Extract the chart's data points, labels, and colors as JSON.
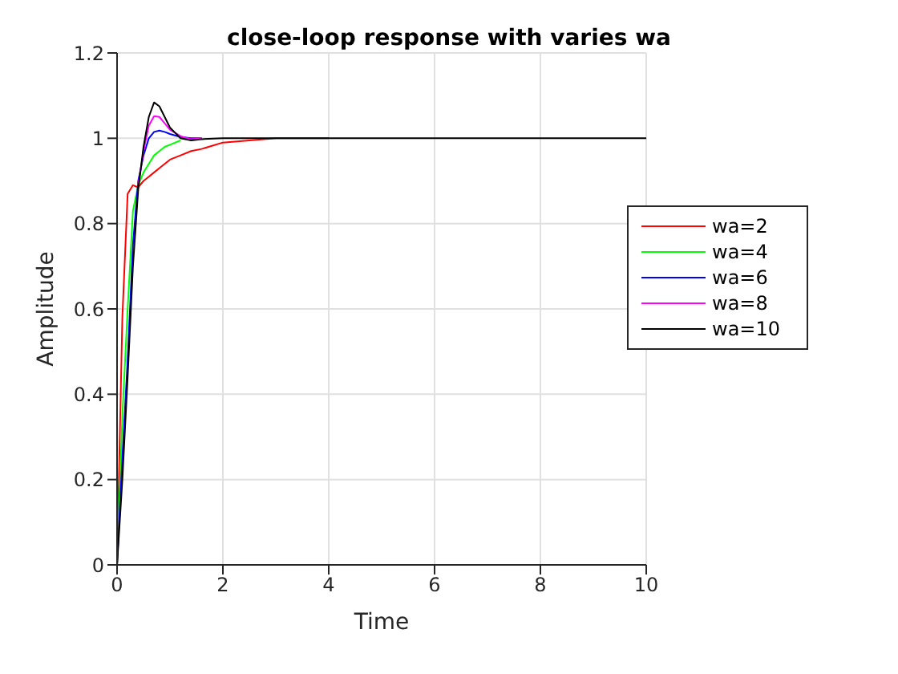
{
  "chart_data": {
    "type": "line",
    "title": "close-loop response with varies wa",
    "xlabel": "Time",
    "ylabel": "Amplitude",
    "x": [
      0,
      0.1,
      0.2,
      0.3,
      0.4,
      0.5,
      0.6,
      0.7,
      0.8,
      0.9,
      1.0,
      1.2,
      1.4,
      1.6,
      2,
      2.5,
      3,
      4,
      6,
      10
    ],
    "series": [
      {
        "name": "wa=2",
        "color": "#ff0000",
        "values": [
          0,
          0.58,
          0.87,
          0.89,
          0.885,
          0.9,
          0.91,
          0.92,
          0.93,
          0.94,
          0.95,
          0.96,
          0.97,
          0.975,
          0.99,
          0.995,
          1,
          1,
          null,
          null
        ]
      },
      {
        "name": "wa=4",
        "color": "#00ff00",
        "values": [
          0,
          0.35,
          0.6,
          0.83,
          0.89,
          0.92,
          0.94,
          0.96,
          0.97,
          0.98,
          0.985,
          0.995,
          null,
          null,
          null,
          null,
          null,
          null,
          null,
          null
        ]
      },
      {
        "name": "wa=6",
        "color": "#0000ff",
        "values": [
          0,
          0.25,
          0.48,
          0.75,
          0.9,
          0.96,
          1.0,
          1.015,
          1.018,
          1.015,
          1.01,
          1.003,
          1,
          1,
          null,
          null,
          null,
          null,
          null,
          null
        ]
      },
      {
        "name": "wa=8",
        "color": "#ff00ff",
        "values": [
          null,
          null,
          null,
          null,
          0.89,
          0.97,
          1.03,
          1.052,
          1.05,
          1.035,
          1.02,
          1.005,
          0.998,
          1,
          null,
          null,
          null,
          null,
          null,
          null
        ]
      },
      {
        "name": "wa=10",
        "color": "#000000",
        "values": [
          0,
          0.2,
          0.44,
          0.7,
          0.88,
          0.98,
          1.05,
          1.084,
          1.075,
          1.05,
          1.025,
          1.0,
          0.995,
          0.998,
          1,
          1,
          1,
          1,
          1,
          1
        ]
      }
    ],
    "xlim": [
      0,
      10
    ],
    "xticks": [
      0,
      2,
      4,
      6,
      8,
      10
    ],
    "ylim": [
      0,
      1.2
    ],
    "yticks": [
      0,
      0.2,
      0.4,
      0.6,
      0.8,
      1,
      1.2
    ],
    "grid": true,
    "legend": "right",
    "marker": "none",
    "line_style": "solid"
  }
}
